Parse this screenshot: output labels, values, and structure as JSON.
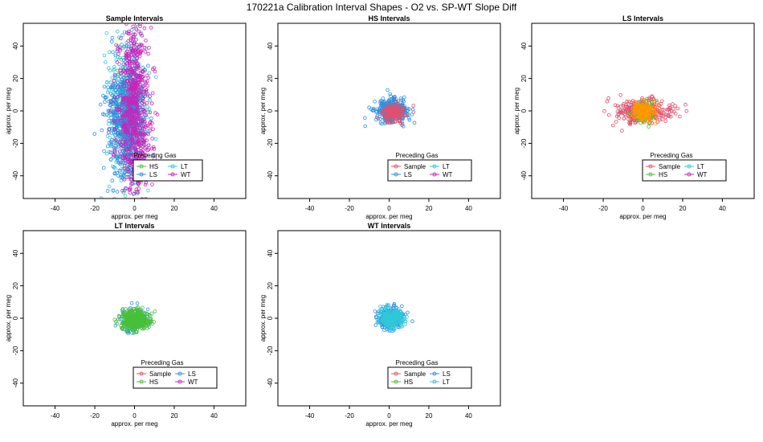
{
  "page": {
    "title": "170221a   Calibration Interval Shapes - O2 vs. SP-WT Slope Diff"
  },
  "colors": {
    "Sample": "#e0506e",
    "HS": "#48c038",
    "LS": "#2f8fe0",
    "LT": "#30c8d8",
    "WT": "#cc22bb",
    "LS_orange": "#ff9900"
  },
  "chart_data": [
    {
      "type": "scatter",
      "title": "Sample Intervals",
      "xlabel": "approx. per meg",
      "ylabel": "approx. per meg",
      "xlim": [
        -56,
        56
      ],
      "ylim": [
        -54,
        54
      ],
      "xticks": [
        -40,
        -20,
        0,
        20,
        40
      ],
      "yticks": [
        -40,
        -20,
        0,
        20,
        40
      ],
      "legend": {
        "title": "Preceding Gas",
        "position": "bottom-center",
        "entries": [
          "HS",
          "LT",
          "LS",
          "WT"
        ]
      },
      "series": [
        {
          "name": "HS",
          "color_key": "HS",
          "center": [
            -3,
            0
          ],
          "spread": [
            3.5,
            20
          ],
          "n": 120
        },
        {
          "name": "LT",
          "color_key": "LT",
          "center": [
            -4,
            0
          ],
          "spread": [
            5,
            24
          ],
          "n": 380
        },
        {
          "name": "LS",
          "color_key": "LS",
          "center": [
            -4,
            -5
          ],
          "spread": [
            4.5,
            18
          ],
          "n": 700
        },
        {
          "name": "WT",
          "color_key": "WT",
          "center": [
            0,
            0
          ],
          "spread": [
            4,
            28
          ],
          "n": 650
        }
      ]
    },
    {
      "type": "scatter",
      "title": "HS Intervals",
      "xlabel": "approx. per meg",
      "ylabel": "approx. per meg",
      "xlim": [
        -56,
        56
      ],
      "ylim": [
        -54,
        54
      ],
      "xticks": [
        -40,
        -20,
        0,
        20,
        40
      ],
      "yticks": [
        -40,
        -20,
        0,
        20,
        40
      ],
      "legend": {
        "title": "Preceding Gas",
        "position": "bottom-center",
        "entries": [
          "Sample",
          "LT",
          "LS",
          "WT"
        ]
      },
      "series": [
        {
          "name": "LS",
          "color_key": "LS",
          "center": [
            1,
            0
          ],
          "spread": [
            4,
            3.5
          ],
          "n": 350
        },
        {
          "name": "Sample",
          "color_key": "Sample",
          "center": [
            2,
            -1
          ],
          "spread": [
            3,
            2.5
          ],
          "n": 150
        }
      ]
    },
    {
      "type": "scatter",
      "title": "LS Intervals",
      "xlabel": "approx. per meg",
      "ylabel": "approx. per meg",
      "xlim": [
        -56,
        56
      ],
      "ylim": [
        -54,
        54
      ],
      "xticks": [
        -40,
        -20,
        0,
        20,
        40
      ],
      "yticks": [
        -40,
        -20,
        0,
        20,
        40
      ],
      "legend": {
        "title": "Preceding Gas",
        "position": "bottom-center",
        "entries": [
          "Sample",
          "LT",
          "HS",
          "WT"
        ]
      },
      "series": [
        {
          "name": "Sample",
          "color_key": "Sample",
          "center": [
            0,
            0
          ],
          "spread": [
            7,
            3.5
          ],
          "n": 300
        },
        {
          "name": "HS",
          "color_key": "HS",
          "center": [
            0,
            0
          ],
          "spread": [
            3,
            4
          ],
          "n": 60
        },
        {
          "name": "LS",
          "color_key": "LS_orange",
          "center": [
            0,
            0
          ],
          "spread": [
            3,
            2.5
          ],
          "n": 200
        }
      ]
    },
    {
      "type": "scatter",
      "title": "LT Intervals",
      "xlabel": "approx. per meg",
      "ylabel": "approx. per meg",
      "xlim": [
        -56,
        56
      ],
      "ylim": [
        -54,
        54
      ],
      "xticks": [
        -40,
        -20,
        0,
        20,
        40
      ],
      "yticks": [
        -40,
        -20,
        0,
        20,
        40
      ],
      "legend": {
        "title": "Preceding Gas",
        "position": "bottom-center",
        "entries": [
          "Sample",
          "LS",
          "HS",
          "WT"
        ]
      },
      "series": [
        {
          "name": "LS",
          "color_key": "LS",
          "center": [
            0,
            -1
          ],
          "spread": [
            3.5,
            3.5
          ],
          "n": 150
        },
        {
          "name": "HS",
          "color_key": "HS",
          "center": [
            0,
            -1
          ],
          "spread": [
            3.5,
            3
          ],
          "n": 400
        }
      ]
    },
    {
      "type": "scatter",
      "title": "WT Intervals",
      "xlabel": "approx. per meg",
      "ylabel": "approx. per meg",
      "xlim": [
        -56,
        56
      ],
      "ylim": [
        -54,
        54
      ],
      "xticks": [
        -40,
        -20,
        0,
        20,
        40
      ],
      "yticks": [
        -40,
        -20,
        0,
        20,
        40
      ],
      "legend": {
        "title": "Preceding Gas",
        "position": "bottom-center",
        "entries": [
          "Sample",
          "LS",
          "HS",
          "LT"
        ]
      },
      "series": [
        {
          "name": "LS",
          "color_key": "LS",
          "center": [
            0,
            0
          ],
          "spread": [
            3,
            3.5
          ],
          "n": 250
        },
        {
          "name": "LT",
          "color_key": "LT",
          "center": [
            1,
            0
          ],
          "spread": [
            3,
            3
          ],
          "n": 250
        }
      ]
    }
  ]
}
